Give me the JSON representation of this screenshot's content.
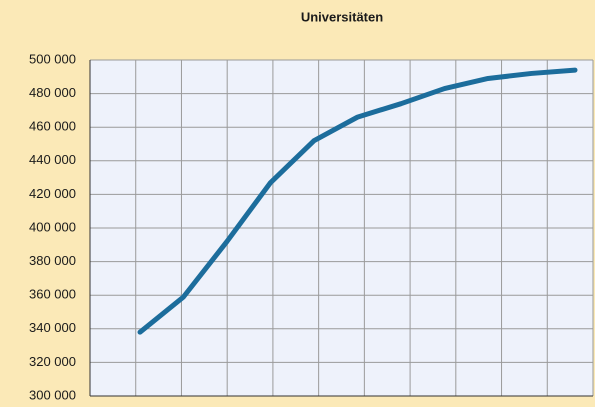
{
  "chart_data": {
    "type": "line",
    "title": "Universitäten",
    "categories": [
      null,
      null,
      null,
      null,
      null,
      null,
      null,
      null,
      null,
      null,
      null
    ],
    "series": [
      {
        "name": "Universitäten",
        "color": "#1c6d9c",
        "values": [
          338000,
          359000,
          392000,
          427000,
          452000,
          466000,
          474000,
          483000,
          489000,
          492000,
          494000
        ]
      }
    ],
    "ylim": [
      300000,
      500000
    ],
    "yticks": [
      {
        "value": 300000,
        "label": "300 000"
      },
      {
        "value": 320000,
        "label": "320 000"
      },
      {
        "value": 340000,
        "label": "340 000"
      },
      {
        "value": 360000,
        "label": "360 000"
      },
      {
        "value": 380000,
        "label": "380 000"
      },
      {
        "value": 400000,
        "label": "400 000"
      },
      {
        "value": 420000,
        "label": "420 000"
      },
      {
        "value": 440000,
        "label": "440 000"
      },
      {
        "value": 460000,
        "label": "460 000"
      },
      {
        "value": 480000,
        "label": "480 000"
      },
      {
        "value": 500000,
        "label": "500 000"
      }
    ],
    "grid": true
  }
}
